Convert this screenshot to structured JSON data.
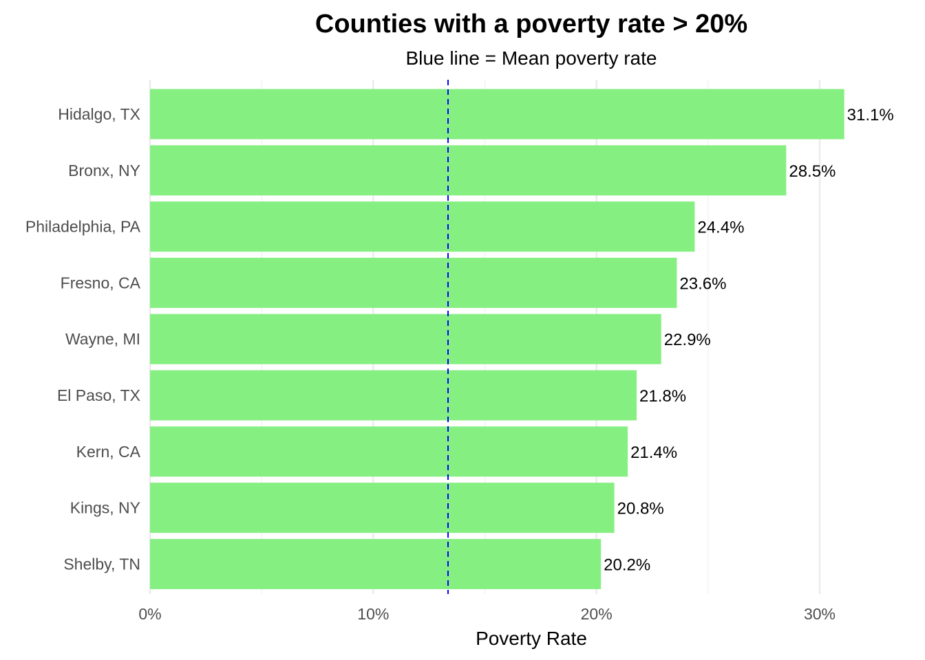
{
  "chart_data": {
    "type": "bar",
    "orientation": "horizontal",
    "title": "Counties with a poverty rate > 20%",
    "subtitle": "Blue line = Mean poverty rate",
    "xlabel": "Poverty Rate",
    "ylabel": "",
    "categories": [
      "Hidalgo, TX",
      "Bronx, NY",
      "Philadelphia, PA",
      "Fresno, CA",
      "Wayne, MI",
      "El Paso, TX",
      "Kern, CA",
      "Kings, NY",
      "Shelby, TN"
    ],
    "values": [
      31.1,
      28.5,
      24.4,
      23.6,
      22.9,
      21.8,
      21.4,
      20.8,
      20.2
    ],
    "value_labels": [
      "31.1%",
      "28.5%",
      "24.4%",
      "23.6%",
      "22.9%",
      "21.8%",
      "21.4%",
      "20.8%",
      "20.2%"
    ],
    "xlim": [
      0,
      32.7
    ],
    "x_ticks": [
      0,
      10,
      20,
      30
    ],
    "x_tick_labels": [
      "0%",
      "10%",
      "20%",
      "30%"
    ],
    "mean_line": 13.35,
    "grid": true,
    "legend": "none",
    "colors": {
      "bar": "#86ef82",
      "mean_line": "#0000ff",
      "grid_major": "#ebebeb",
      "grid_minor": "#f3f3f3"
    }
  }
}
